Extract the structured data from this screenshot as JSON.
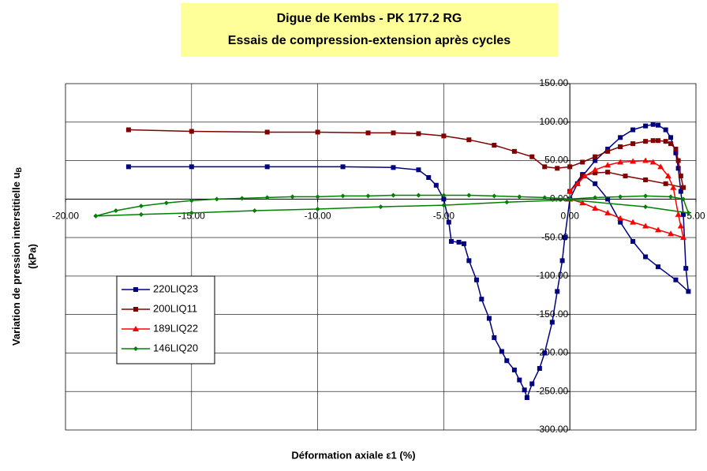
{
  "chart_data": {
    "type": "scatter",
    "title": "Digue de Kembs - PK 177.2 RG",
    "subtitle": "Essais de compression-extension après cycles",
    "xlabel": "Déformation axiale ε1 (%)",
    "ylabel": {
      "text": "Variation de pression interstitielle u",
      "subscript": "B",
      "unit": "(kPa)"
    },
    "xlim": [
      -20,
      5
    ],
    "xticks": [
      {
        "value": -20,
        "label": "-20.00"
      },
      {
        "value": -15,
        "label": "-15.00"
      },
      {
        "value": -10,
        "label": "-10.00"
      },
      {
        "value": -5,
        "label": "-5.00"
      },
      {
        "value": 0,
        "label": "0.00"
      },
      {
        "value": 5,
        "label": "5.00"
      }
    ],
    "ylim": [
      -300,
      150
    ],
    "yticks": [
      {
        "value": -300,
        "label": "-300.00"
      },
      {
        "value": -250,
        "label": "-250.00"
      },
      {
        "value": -200,
        "label": "-200.00"
      },
      {
        "value": -150,
        "label": "-150.00"
      },
      {
        "value": -100,
        "label": "-100.00"
      },
      {
        "value": -50,
        "label": "-50.00"
      },
      {
        "value": 0,
        "label": "0.00"
      },
      {
        "value": 50,
        "label": "50.00"
      },
      {
        "value": 100,
        "label": "100.00"
      },
      {
        "value": 150,
        "label": "150.00"
      }
    ],
    "grid": true,
    "legend": "left",
    "series": [
      {
        "name": "220LIQ23",
        "color": "#000080",
        "marker": "square",
        "x": [
          -17.5,
          -15,
          -12,
          -9,
          -7,
          -6,
          -5.6,
          -5.3,
          -5,
          -4.8,
          -4.7,
          -4.4,
          -4.2,
          -4,
          -3.7,
          -3.5,
          -3.2,
          -3,
          -2.7,
          -2.5,
          -2.2,
          -2,
          -1.8,
          -1.7,
          -1.5,
          -1.2,
          -1,
          -0.7,
          -0.5,
          -0.3,
          -0.2,
          0,
          0.3,
          0.5,
          1,
          1.5,
          2,
          2.5,
          3,
          3.3,
          3.5,
          3.8,
          4,
          4.2,
          4.3,
          4.4,
          4.5,
          4.6,
          4.7,
          4.2,
          3.5,
          3,
          2.5,
          2,
          1.5,
          1,
          0.5,
          0
        ],
        "values": [
          42,
          42,
          42,
          42,
          41,
          38,
          28,
          18,
          0,
          -30,
          -55,
          -56,
          -58,
          -80,
          -105,
          -130,
          -155,
          -180,
          -198,
          -210,
          -222,
          -235,
          -248,
          -258,
          -240,
          -220,
          -200,
          -160,
          -120,
          -80,
          -50,
          0,
          20,
          30,
          50,
          65,
          80,
          90,
          95,
          97,
          96,
          90,
          80,
          60,
          40,
          10,
          -20,
          -90,
          -120,
          -105,
          -88,
          -75,
          -55,
          -30,
          0,
          20,
          32,
          10
        ]
      },
      {
        "name": "200LIQ11",
        "color": "#800000",
        "marker": "square",
        "x": [
          -17.5,
          -15,
          -12,
          -10,
          -8,
          -7,
          -6,
          -5,
          -4,
          -3,
          -2.2,
          -1.5,
          -1,
          -0.5,
          0,
          0.5,
          1,
          1.5,
          2,
          2.5,
          3,
          3.3,
          3.5,
          3.8,
          4,
          4.2,
          4.3,
          4.4,
          4.5,
          3.8,
          3,
          2.2,
          1.5,
          1,
          0.5,
          0
        ],
        "values": [
          90,
          88,
          87,
          87,
          86,
          86,
          85,
          82,
          77,
          70,
          62,
          55,
          42,
          40,
          42,
          48,
          55,
          62,
          68,
          72,
          75,
          76,
          76,
          75,
          72,
          65,
          50,
          30,
          15,
          20,
          25,
          30,
          35,
          34,
          30,
          10
        ]
      },
      {
        "name": "189LIQ22",
        "color": "#ff0000",
        "marker": "triangle",
        "x": [
          0,
          0.3,
          0.6,
          1,
          1.5,
          2,
          2.5,
          3,
          3.3,
          3.6,
          3.9,
          4.1,
          4.3,
          4.4,
          4.5,
          4,
          3.5,
          3,
          2.5,
          2,
          1.5,
          1,
          0.5,
          0
        ],
        "values": [
          10,
          20,
          30,
          38,
          44,
          48,
          49,
          50,
          48,
          42,
          30,
          15,
          -20,
          -35,
          -50,
          -45,
          -40,
          -35,
          -30,
          -25,
          -18,
          -12,
          -5,
          0
        ]
      },
      {
        "name": "146LIQ20",
        "color": "#008000",
        "marker": "diamond",
        "x": [
          -18.8,
          -18,
          -17,
          -16,
          -15,
          -14,
          -13,
          -12,
          -11,
          -10,
          -9,
          -8,
          -7,
          -6,
          -5,
          -4,
          -3,
          -2,
          -1,
          0,
          1,
          2,
          3,
          4,
          4.5,
          4.7,
          3,
          0,
          -2.5,
          -5,
          -7.5,
          -10,
          -12.5,
          -15,
          -17,
          -18.8
        ],
        "values": [
          -22,
          -15,
          -9,
          -5,
          -2,
          0,
          1,
          2,
          3,
          3,
          4,
          4,
          5,
          5,
          5,
          5,
          4,
          3,
          2,
          0,
          2,
          3,
          4,
          3,
          0,
          -18,
          -10,
          -1,
          -4,
          -8,
          -10,
          -13,
          -15,
          -18,
          -20,
          -22
        ]
      }
    ]
  }
}
